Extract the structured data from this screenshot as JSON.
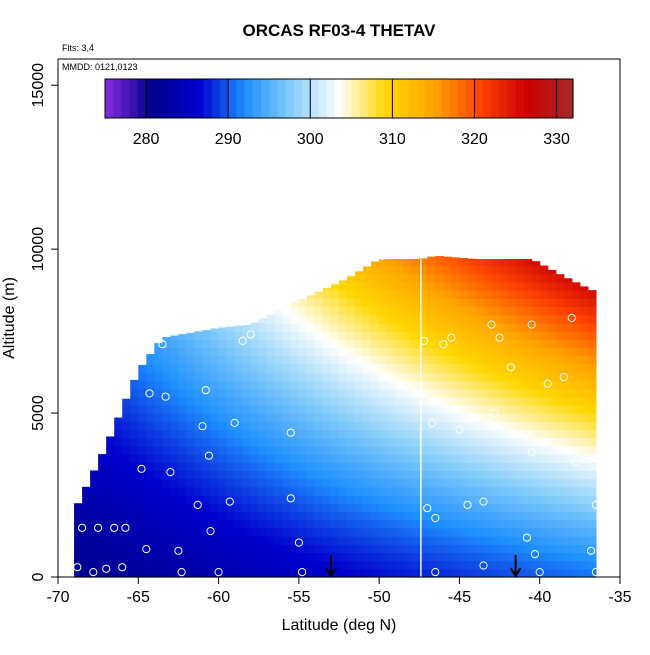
{
  "chart_data": {
    "type": "heatmap",
    "title": "ORCAS RF03-4 THETAV",
    "annotations": [
      "Flts: 3,4",
      "MMDD: 0121,0123"
    ],
    "xlabel": "Latitude (deg N)",
    "ylabel": "Altitude (m)",
    "xlim": [
      -70,
      -35
    ],
    "ylim": [
      0,
      15800
    ],
    "x_ticks": [
      -70,
      -65,
      -60,
      -55,
      -50,
      -45,
      -40,
      -35
    ],
    "x_tick_labels": [
      "-70",
      "-65",
      "-60",
      "-55",
      "-50",
      "-45",
      "-40",
      "-35"
    ],
    "y_ticks": [
      0,
      5000,
      10000,
      15000
    ],
    "y_tick_labels": [
      "0",
      "5000",
      "10000",
      "15000"
    ],
    "colorbar": {
      "vmin": 275,
      "vmax": 332,
      "ticks": [
        280,
        290,
        300,
        310,
        320,
        330
      ],
      "tick_labels": [
        "280",
        "290",
        "300",
        "310",
        "320",
        "330"
      ],
      "color_stops": [
        "#8a2be2",
        "#00008b",
        "#0000cd",
        "#1e90ff",
        "#87cefa",
        "#ffffff",
        "#ffd700",
        "#ffa500",
        "#ff4500",
        "#cc0000",
        "#a52a2a"
      ]
    },
    "field_model": {
      "domain": {
        "lat_edges": [
          [
            -69,
            2000
          ],
          [
            -67,
            4000
          ],
          [
            -65,
            6300
          ],
          [
            -63.5,
            7300
          ],
          [
            -60,
            7600
          ],
          [
            -58,
            7700
          ],
          [
            -56,
            8200
          ],
          [
            -52,
            9100
          ],
          [
            -50,
            9700
          ],
          [
            -47.4,
            9700
          ],
          [
            -46.5,
            9800
          ],
          [
            -44,
            9700
          ],
          [
            -40.5,
            9700
          ],
          [
            -39,
            9300
          ],
          [
            -37,
            8800
          ],
          [
            -35.5,
            8500
          ],
          [
            -35.5,
            7600
          ],
          [
            -36,
            5800
          ],
          [
            -36.5,
            3500
          ],
          [
            -36.5,
            0
          ],
          [
            -69,
            0
          ]
        ]
      },
      "surface_temp_at_-69": 281,
      "surface_temp_at_-37": 291,
      "top_temp_at_-69": 293,
      "top_temp_at_-37": 330
    },
    "observation_points": [
      {
        "lat": -68.8,
        "alt": 300
      },
      {
        "lat": -68.5,
        "alt": 1500
      },
      {
        "lat": -67.8,
        "alt": 150
      },
      {
        "lat": -67.5,
        "alt": 1500
      },
      {
        "lat": -67.0,
        "alt": 250
      },
      {
        "lat": -66.5,
        "alt": 1500
      },
      {
        "lat": -66.0,
        "alt": 300
      },
      {
        "lat": -65.8,
        "alt": 1500
      },
      {
        "lat": -64.5,
        "alt": 850
      },
      {
        "lat": -62.5,
        "alt": 800
      },
      {
        "lat": -62.3,
        "alt": 150
      },
      {
        "lat": -61.3,
        "alt": 2200
      },
      {
        "lat": -60.5,
        "alt": 1400
      },
      {
        "lat": -60.0,
        "alt": 150
      },
      {
        "lat": -59.3,
        "alt": 2300
      },
      {
        "lat": -55.5,
        "alt": 2400
      },
      {
        "lat": -55.0,
        "alt": 1050
      },
      {
        "lat": -54.8,
        "alt": 150
      },
      {
        "lat": -64.8,
        "alt": 3300
      },
      {
        "lat": -63.0,
        "alt": 3200
      },
      {
        "lat": -60.6,
        "alt": 3700
      },
      {
        "lat": -61.0,
        "alt": 4600
      },
      {
        "lat": -59.0,
        "alt": 4700
      },
      {
        "lat": -55.5,
        "alt": 4400
      },
      {
        "lat": -64.3,
        "alt": 5600
      },
      {
        "lat": -63.3,
        "alt": 5500
      },
      {
        "lat": -60.8,
        "alt": 5700
      },
      {
        "lat": -63.5,
        "alt": 7100
      },
      {
        "lat": -58.5,
        "alt": 7200
      },
      {
        "lat": -58.0,
        "alt": 7400
      },
      {
        "lat": -47.2,
        "alt": 7200
      },
      {
        "lat": -46.0,
        "alt": 7100
      },
      {
        "lat": -45.5,
        "alt": 7300
      },
      {
        "lat": -43.0,
        "alt": 7700
      },
      {
        "lat": -42.5,
        "alt": 7300
      },
      {
        "lat": -40.5,
        "alt": 7700
      },
      {
        "lat": -41.8,
        "alt": 6400
      },
      {
        "lat": -39.5,
        "alt": 5900
      },
      {
        "lat": -38.5,
        "alt": 6100
      },
      {
        "lat": -38.0,
        "alt": 7900
      },
      {
        "lat": -35.5,
        "alt": 7600
      },
      {
        "lat": -46.7,
        "alt": 4700
      },
      {
        "lat": -45.0,
        "alt": 4500
      },
      {
        "lat": -44.5,
        "alt": 4800
      },
      {
        "lat": -42.8,
        "alt": 5000
      },
      {
        "lat": -40.5,
        "alt": 3800
      },
      {
        "lat": -37.8,
        "alt": 3500
      },
      {
        "lat": -47.0,
        "alt": 2100
      },
      {
        "lat": -46.5,
        "alt": 1800
      },
      {
        "lat": -44.5,
        "alt": 2200
      },
      {
        "lat": -43.5,
        "alt": 2300
      },
      {
        "lat": -40.8,
        "alt": 1200
      },
      {
        "lat": -40.3,
        "alt": 700
      },
      {
        "lat": -43.5,
        "alt": 350
      },
      {
        "lat": -46.5,
        "alt": 150
      },
      {
        "lat": -40.0,
        "alt": 150
      },
      {
        "lat": -36.8,
        "alt": 800
      },
      {
        "lat": -36.5,
        "alt": 2200
      },
      {
        "lat": -36.5,
        "alt": 150
      },
      {
        "lat": -35.8,
        "alt": 5000
      },
      {
        "lat": -49.8,
        "alt": 9800
      }
    ],
    "vertical_line_lat": -47.4,
    "arrows_lat": [
      -53.0,
      -41.5
    ],
    "background_color": "#ffffff"
  }
}
